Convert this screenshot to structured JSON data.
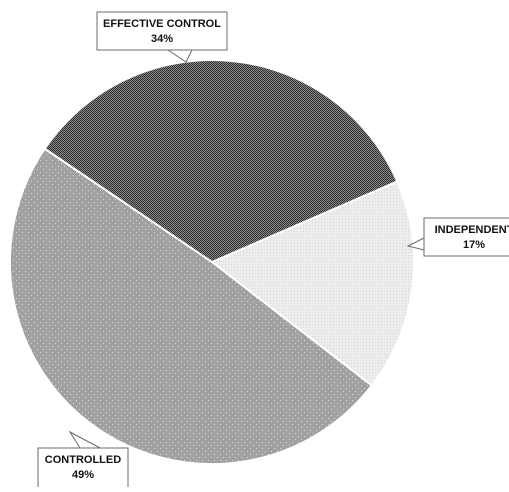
{
  "chart_data": {
    "type": "pie",
    "slices": [
      {
        "label": "INDEPENDENT",
        "value": 17,
        "value_text": "17%",
        "fill": "light-crosshatch"
      },
      {
        "label": "CONTROLLED",
        "value": 49,
        "value_text": "49%",
        "fill": "dotted-gray"
      },
      {
        "label": "EFFECTIVE CONTROL",
        "value": 34,
        "value_text": "34%",
        "fill": "dark-checker"
      }
    ],
    "colors": {
      "independent": "#ececec",
      "controlled": "#a3a3a3",
      "effective_control": "#5e5e5e",
      "slice_border": "#ffffff",
      "callout_border": "#6b6b6b"
    },
    "legend": "none",
    "data_labels": "callouts"
  }
}
